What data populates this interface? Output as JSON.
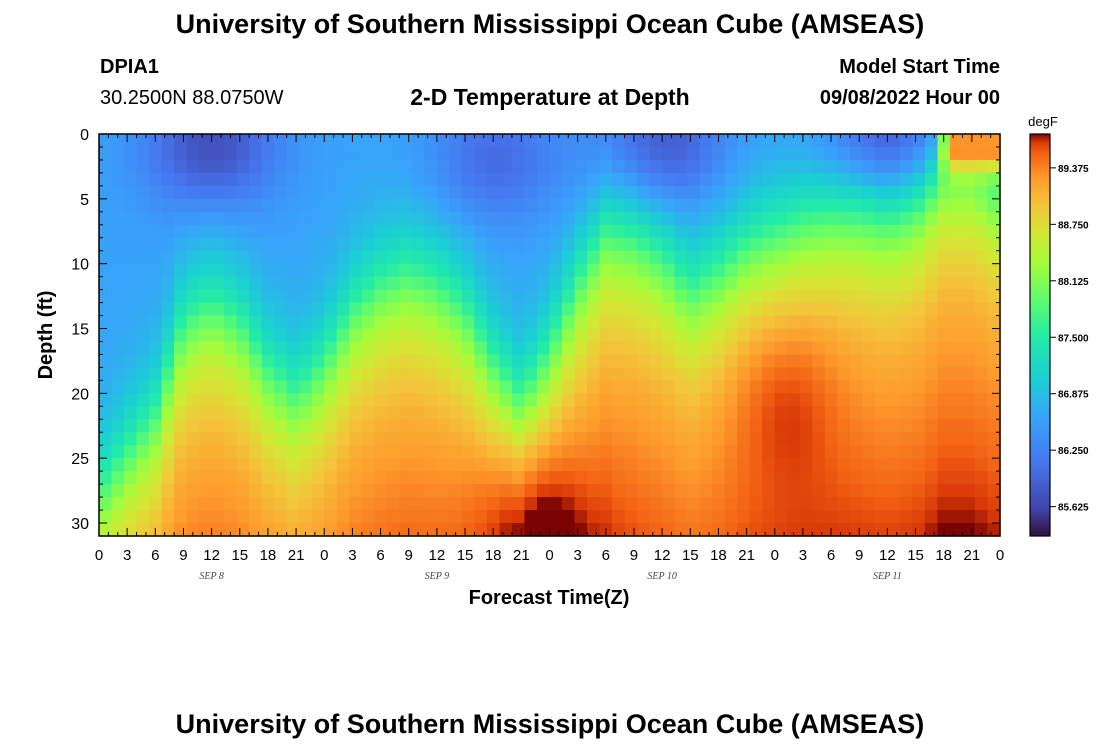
{
  "header": {
    "title": "University of Southern Mississippi Ocean Cube (AMSEAS)",
    "station_id": "DPIA1",
    "station_coords": "30.2500N  88.0750W",
    "plot_title": "2-D Temperature at Depth",
    "start_label": "Model Start Time",
    "start_value": "09/08/2022 Hour 00"
  },
  "footer": {
    "title": "University of Southern Mississippi Ocean Cube (AMSEAS)"
  },
  "chart_data": {
    "type": "heatmap",
    "title": "2-D Temperature at Depth",
    "xlabel": "Forecast Time(Z)",
    "ylabel": "Depth (ft)",
    "xlim": [
      0,
      96
    ],
    "ylim": [
      0,
      31
    ],
    "x_tick_labels": [
      "0",
      "3",
      "6",
      "9",
      "12",
      "15",
      "18",
      "21",
      "0",
      "3",
      "6",
      "9",
      "12",
      "15",
      "18",
      "21",
      "0",
      "3",
      "6",
      "9",
      "12",
      "15",
      "18",
      "21",
      "0",
      "3",
      "6",
      "9",
      "12",
      "15",
      "18",
      "21",
      "0"
    ],
    "day_labels": [
      "SEP 8",
      "SEP 9",
      "SEP 10",
      "SEP 11"
    ],
    "y_ticks": [
      0,
      5,
      10,
      15,
      20,
      25,
      30
    ],
    "colorbar": {
      "unit": "degF",
      "ticks": [
        "89.375",
        "88.750",
        "88.125",
        "87.500",
        "86.875",
        "86.250",
        "85.625"
      ],
      "min": 85.3,
      "max": 89.75
    },
    "thermocline_depth_ft": [
      [
        0,
        28
      ],
      [
        6,
        22
      ],
      [
        9,
        15
      ],
      [
        12,
        13.5
      ],
      [
        15,
        15
      ],
      [
        18,
        18.5
      ],
      [
        21,
        20.5
      ],
      [
        24,
        18
      ],
      [
        27,
        14
      ],
      [
        30,
        12
      ],
      [
        33,
        11
      ],
      [
        36,
        12
      ],
      [
        39,
        14
      ],
      [
        42,
        18
      ],
      [
        45,
        21
      ],
      [
        48,
        17
      ],
      [
        51,
        12
      ],
      [
        54,
        8
      ],
      [
        57,
        8.5
      ],
      [
        60,
        10
      ],
      [
        63,
        12.5
      ],
      [
        66,
        11
      ],
      [
        69,
        9
      ],
      [
        72,
        8
      ],
      [
        75,
        7
      ],
      [
        78,
        6.5
      ],
      [
        81,
        6.5
      ],
      [
        84,
        7
      ],
      [
        87,
        6
      ],
      [
        90,
        3
      ],
      [
        93,
        3
      ],
      [
        96,
        5
      ]
    ],
    "surface_cold_minima": [
      {
        "hour": 12,
        "depth_ft": 1,
        "value": 85.7
      },
      {
        "hour": 42,
        "depth_ft": 2,
        "value": 86.0
      },
      {
        "hour": 60,
        "depth_ft": 1,
        "value": 85.8
      },
      {
        "hour": 84,
        "depth_ft": 0.5,
        "value": 85.7
      }
    ],
    "bottom_warm_maxima": [
      {
        "hour": 46,
        "depth_ft": 30,
        "value": 89.7
      },
      {
        "hour": 73,
        "depth_ft": 20,
        "value": 89.4
      }
    ],
    "surface_warm_patch": {
      "hour_range": [
        90,
        96
      ],
      "depth_ft": 1,
      "value": 89.4
    }
  }
}
